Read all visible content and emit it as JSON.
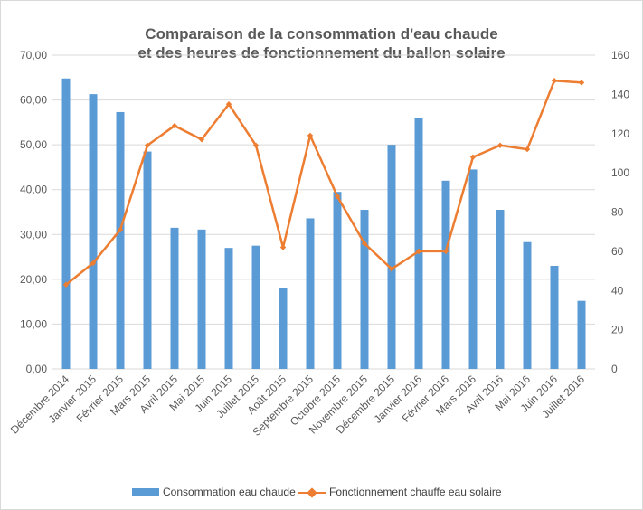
{
  "chart_data": {
    "type": "bar+line",
    "title_line1": "Comparaison de la consommation d'eau chaude",
    "title_line2": "et des heures de fonctionnement du ballon solaire",
    "categories": [
      "Décembre 2014",
      "Janvier 2015",
      "Février 2015",
      "Mars 2015",
      "Avril 2015",
      "Mai 2015",
      "Juin 2015",
      "Juillet 2015",
      "Août 2015",
      "Septembre 2015",
      "Octobre 2015",
      "Novembre 2015",
      "Décembre 2015",
      "Janvier 2016",
      "Février 2016",
      "Mars 2016",
      "Avril 2016",
      "Mai 2016",
      "Juin 2016",
      "Juillet 2016"
    ],
    "series": [
      {
        "name": "Consommation eau chaude",
        "type": "bar",
        "axis": "left",
        "color": "#5b9bd5",
        "values": [
          64.8,
          61.3,
          57.3,
          48.5,
          31.5,
          31.1,
          27.0,
          27.5,
          18.0,
          33.6,
          39.5,
          35.5,
          50.0,
          56.0,
          42.0,
          44.5,
          35.5,
          28.3,
          23.0,
          15.2
        ]
      },
      {
        "name": "Fonctionnement chauffe eau solaire",
        "type": "line",
        "axis": "right",
        "color": "#ed7d31",
        "values": [
          43,
          54,
          71,
          114,
          124,
          117,
          135,
          114,
          62,
          119,
          88,
          64,
          51,
          60,
          60,
          108,
          114,
          112,
          147,
          146
        ]
      }
    ],
    "ylim_left": [
      0,
      70
    ],
    "ylim_right": [
      0,
      160
    ],
    "yticks_left": [
      "0,00",
      "10,00",
      "20,00",
      "30,00",
      "40,00",
      "50,00",
      "60,00",
      "70,00"
    ],
    "yticks_right": [
      "0",
      "20",
      "40",
      "60",
      "80",
      "100",
      "120",
      "140",
      "160"
    ],
    "grid": true,
    "legend_position": "bottom"
  }
}
